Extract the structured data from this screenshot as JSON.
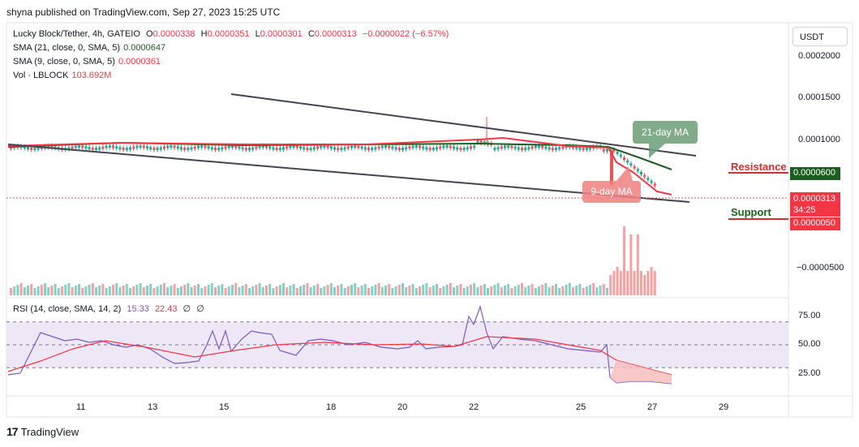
{
  "header": {
    "publisher": "shyna published on TradingView.com, Sep 27, 2023 15:25 UTC"
  },
  "legend": {
    "symbol": "Lucky Block/Tether, 4h, GATEIO",
    "o_label": "O",
    "o": "0.0000338",
    "h_label": "H",
    "h": "0.0000351",
    "l_label": "L",
    "l": "0.0000301",
    "c_label": "C",
    "c": "0.0000313",
    "change": "−0.0000022 (−6.57%)",
    "sma21_label": "SMA (21, close, 0, SMA, 5)",
    "sma21_value": "0.0000647",
    "sma9_label": "SMA (9, close, 0, SMA, 5)",
    "sma9_value": "0.0000361",
    "vol_label": "Vol · LBLOCK",
    "vol_value": "103.692M"
  },
  "currency_button": "USDT",
  "price_axis": {
    "ticks": [
      "0.0002000",
      "0.0001500",
      "0.0001000",
      "−0.0000500"
    ],
    "current_price": "0.0000313",
    "countdown": "34:25",
    "resistance_value": "0.0000600",
    "support_value": "0.0000050"
  },
  "time_axis": {
    "ticks": [
      "11",
      "13",
      "15",
      "18",
      "20",
      "22",
      "25",
      "27",
      "29"
    ]
  },
  "annotations": {
    "resistance": "Resistance",
    "support": "Support",
    "ma21": "21-day MA",
    "ma9": "9-day MA"
  },
  "rsi": {
    "label": "RSI (14, close, SMA, 14, 2)",
    "value1": "15.33",
    "value2": "22.43",
    "value3": "∅",
    "value4": "∅",
    "ticks": [
      "75.00",
      "50.00",
      "25.00"
    ]
  },
  "footer": {
    "brand": "TradingView"
  },
  "colors": {
    "up": "#26a69a",
    "down": "#ef5350",
    "sma21": "#1b5e20",
    "sma9": "#f23645",
    "rsi_line": "#7e57c2",
    "rsi_ma": "#f23645",
    "rsi_band": "#ede7f6",
    "resistance": "#d32f2f",
    "support": "#1b5e20",
    "trendline": "#434651"
  },
  "chart_data": {
    "type": "candlestick",
    "x_ticks": [
      "11",
      "13",
      "15",
      "18",
      "20",
      "22",
      "25",
      "27",
      "29"
    ],
    "y_ticks": [
      0.0002,
      0.00015,
      0.0001,
      -5e-05
    ],
    "price_samples": [
      {
        "x": "10",
        "close": 9.3e-05
      },
      {
        "x": "11",
        "close": 9.6e-05
      },
      {
        "x": "13",
        "close": 9.7e-05
      },
      {
        "x": "15",
        "close": 9.4e-05
      },
      {
        "x": "18",
        "close": 9.5e-05
      },
      {
        "x": "20",
        "close": 9.5e-05
      },
      {
        "x": "22",
        "close": 0.000103
      },
      {
        "x": "25",
        "close": 9.2e-05
      },
      {
        "x": "26",
        "close": 5.5e-05
      },
      {
        "x": "27",
        "close": 3.13e-05
      }
    ],
    "resistance_level": 6e-05,
    "support_level": 5e-06,
    "rsi_levels": [
      75,
      50,
      25
    ],
    "rsi_last": 15.33,
    "rsi_ma_last": 22.43
  }
}
